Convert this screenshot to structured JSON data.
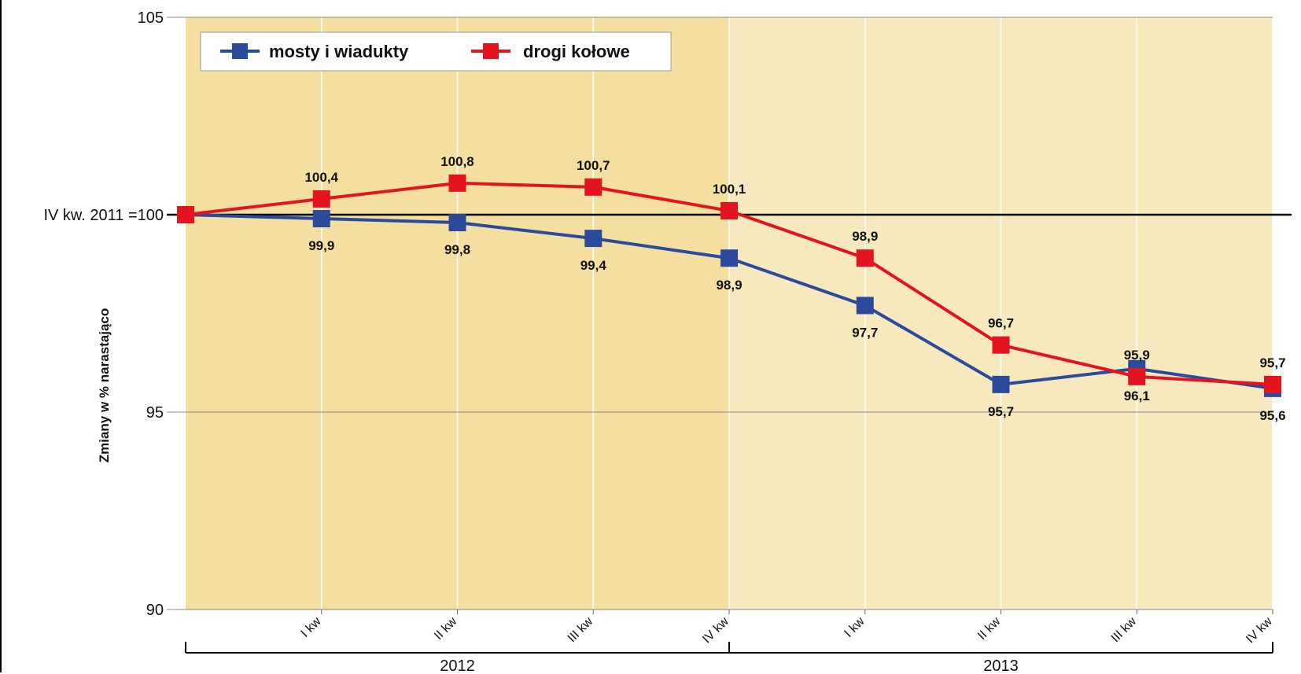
{
  "chart_data": {
    "type": "line",
    "categories": [
      "IV kw. 2011",
      "I kw",
      "II kw",
      "III kw",
      "IV kw",
      "I kw",
      "II kw",
      "III kw",
      "IV kw"
    ],
    "x_tick_labels": [
      "I kw",
      "II kw",
      "III kw",
      "IV kw",
      "I kw",
      "II kw",
      "III kw",
      "IV kw"
    ],
    "groups": [
      {
        "label": "2012"
      },
      {
        "label": "2013"
      }
    ],
    "series": [
      {
        "name": "mosty i wiadukty",
        "color": "#2b4a9b",
        "values": [
          100,
          99.9,
          99.8,
          99.4,
          98.9,
          97.7,
          95.7,
          96.1,
          95.6
        ],
        "labels": [
          "",
          "99,9",
          "99,8",
          "99,4",
          "98,9",
          "97,7",
          "95,7",
          "96,1",
          "95,6"
        ]
      },
      {
        "name": "drogi kołowe",
        "color": "#e3141f",
        "values": [
          100,
          100.4,
          100.8,
          100.7,
          100.1,
          98.9,
          96.7,
          95.9,
          95.7
        ],
        "labels": [
          "",
          "100,4",
          "100,8",
          "100,7",
          "100,1",
          "98,9",
          "96,7",
          "95,9",
          "95,7"
        ]
      }
    ],
    "y_ticks": [
      {
        "value": 105,
        "label": "105"
      },
      {
        "value": 100,
        "label": "IV kw. 2011 =100"
      },
      {
        "value": 95,
        "label": "95"
      },
      {
        "value": 90,
        "label": "90"
      }
    ],
    "ylim": [
      90,
      105
    ],
    "ylabel": "Zmiany w % narastająco",
    "xlabel": "",
    "title": "",
    "reference_line": 100,
    "legend_position": "top-left",
    "grid": "vertical",
    "colors": {
      "band_2012": "#f4dfa0",
      "band_2013": "#f7e8be",
      "grid": "#ffffff",
      "reference_line": "#000000"
    }
  }
}
